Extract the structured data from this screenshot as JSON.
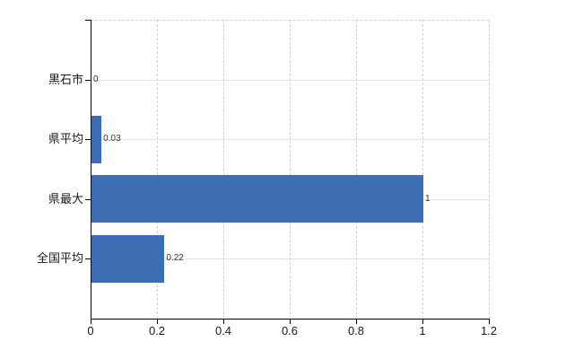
{
  "chart": {
    "background_color": "#ffffff",
    "axis_color": "#000000",
    "vertical_gridline_color": "#d5ced5",
    "horizontal_gridline_color": "#dce2dc",
    "label_color": "#1a1a1a",
    "value_label_color": "#333333"
  },
  "chart_data": {
    "type": "bar",
    "orientation": "horizontal",
    "title": "",
    "xlabel": "",
    "ylabel": "",
    "categories": [
      "黒石市",
      "県平均",
      "県最大",
      "全国平均"
    ],
    "values": [
      0,
      0.03,
      1,
      0.22
    ],
    "value_labels": [
      "0",
      "0.03",
      "1",
      "0.22"
    ],
    "xlim": [
      0,
      1.2
    ],
    "xticks": [
      0,
      0.2,
      0.4,
      0.6,
      0.8,
      1,
      1.2
    ],
    "xtick_labels": [
      "0",
      "0.2",
      "0.4",
      "0.6",
      "0.8",
      "1",
      "1.2"
    ],
    "grid": true,
    "legend": false,
    "bar_color": "#3D6EB4"
  }
}
